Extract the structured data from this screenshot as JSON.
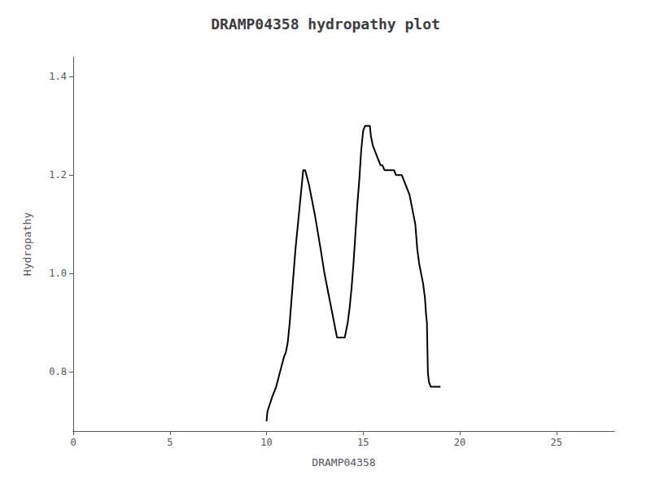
{
  "chart_data": {
    "type": "line",
    "title": "DRAMP04358 hydropathy plot",
    "xlabel": "DRAMP04358",
    "ylabel": "Hydropathy",
    "xlim": [
      0,
      28
    ],
    "ylim": [
      0.68,
      1.44
    ],
    "xticks": [
      0,
      5,
      10,
      15,
      20,
      25
    ],
    "yticks": [
      0.8,
      {
        "value": 1,
        "label": "1.0"
      },
      1.2,
      1.4
    ],
    "grid": false,
    "color": "#000000",
    "x": [
      10.0,
      10.05,
      10.3,
      10.5,
      10.7,
      10.9,
      11.0,
      11.1,
      11.2,
      11.3,
      11.4,
      11.5,
      11.6,
      11.7,
      11.8,
      11.85,
      11.9,
      12.0,
      12.2,
      12.5,
      12.8,
      13.0,
      13.2,
      13.4,
      13.5,
      13.6,
      13.65,
      13.7,
      13.8,
      13.9,
      14.0,
      14.05,
      14.1,
      14.2,
      14.3,
      14.4,
      14.5,
      14.6,
      14.7,
      14.8,
      14.9,
      15.0,
      15.1,
      15.2,
      15.3,
      15.35,
      15.4,
      15.5,
      15.6,
      15.7,
      15.8,
      15.9,
      16.0,
      16.1,
      16.2,
      16.3,
      16.4,
      16.5,
      16.6,
      16.7,
      16.8,
      16.9,
      17.0,
      17.1,
      17.2,
      17.3,
      17.4,
      17.5,
      17.6,
      17.7,
      17.8,
      17.9,
      18.0,
      18.1,
      18.2,
      18.25,
      18.3,
      18.35,
      18.4,
      18.5,
      18.6,
      18.7,
      18.8,
      18.9,
      19.0
    ],
    "values": [
      0.7,
      0.72,
      0.75,
      0.77,
      0.8,
      0.83,
      0.84,
      0.86,
      0.9,
      0.95,
      1.0,
      1.05,
      1.09,
      1.13,
      1.17,
      1.19,
      1.21,
      1.21,
      1.18,
      1.12,
      1.05,
      1.0,
      0.96,
      0.92,
      0.9,
      0.88,
      0.87,
      0.87,
      0.87,
      0.87,
      0.87,
      0.87,
      0.88,
      0.9,
      0.93,
      0.97,
      1.02,
      1.08,
      1.14,
      1.19,
      1.25,
      1.29,
      1.3,
      1.3,
      1.3,
      1.3,
      1.28,
      1.26,
      1.25,
      1.24,
      1.23,
      1.22,
      1.22,
      1.21,
      1.21,
      1.21,
      1.21,
      1.21,
      1.21,
      1.2,
      1.2,
      1.2,
      1.2,
      1.19,
      1.18,
      1.17,
      1.16,
      1.14,
      1.12,
      1.1,
      1.05,
      1.02,
      1.0,
      0.98,
      0.95,
      0.92,
      0.9,
      0.8,
      0.78,
      0.77,
      0.77,
      0.77,
      0.77,
      0.77,
      0.77
    ]
  }
}
